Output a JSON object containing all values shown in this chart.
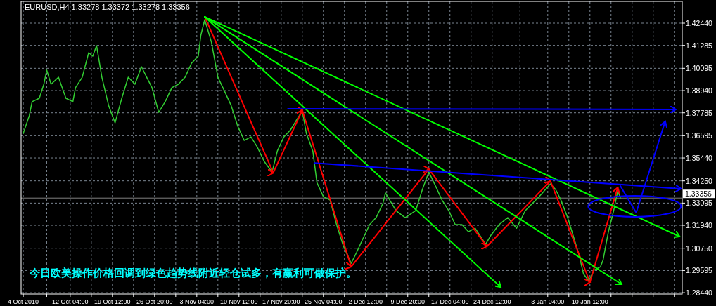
{
  "chart_data": {
    "type": "line",
    "title": "EURUSD,H4  1.33278 1.33372 1.33278 1.33356",
    "annotations": [
      "今日欧美操作价格回调到绿色趋势线附近轻仓试多，有赢利可做保护。"
    ],
    "xlim": [
      "2010-10-03T15:00",
      "2011-01-26T13:00"
    ],
    "ylim": [
      1.2837,
      1.4357
    ],
    "xticks": [
      {
        "value": "2010-10-04T00:00",
        "label": "4 Oct 2010"
      },
      {
        "value": "2010-10-08T02:00",
        "label": null
      },
      {
        "value": "2010-10-12T04:00",
        "label": "12 Oct 04:00"
      },
      {
        "value": "2010-10-15T20:00",
        "label": null
      },
      {
        "value": "2010-10-19T12:00",
        "label": "19 Oct 12:00"
      },
      {
        "value": "2010-10-23T04:00",
        "label": null
      },
      {
        "value": "2010-10-26T20:00",
        "label": "26 Oct 20:00"
      },
      {
        "value": "2010-10-30T12:00",
        "label": null
      },
      {
        "value": "2010-11-03T04:00",
        "label": "3 Nov 04:00"
      },
      {
        "value": "2010-11-06T20:00",
        "label": null
      },
      {
        "value": "2010-11-10T12:00",
        "label": "10 Nov 12:00"
      },
      {
        "value": "2010-11-14T04:00",
        "label": null
      },
      {
        "value": "2010-11-17T20:00",
        "label": "17 Nov 20:00"
      },
      {
        "value": "2010-11-21T12:00",
        "label": null
      },
      {
        "value": "2010-11-25T04:00",
        "label": "25 Nov 04:00"
      },
      {
        "value": "2010-11-28T20:00",
        "label": null
      },
      {
        "value": "2010-12-02T12:00",
        "label": "2 Dec 12:00"
      },
      {
        "value": "2010-12-06T04:00",
        "label": null
      },
      {
        "value": "2010-12-09T20:00",
        "label": "9 Dec 20:00"
      },
      {
        "value": "2010-12-13T12:00",
        "label": null
      },
      {
        "value": "2010-12-17T04:00",
        "label": "17 Dec 04:00"
      },
      {
        "value": "2010-12-20T20:00",
        "label": null
      },
      {
        "value": "2010-12-24T12:00",
        "label": "24 Dec 12:00"
      },
      {
        "value": "2010-12-29T08:00",
        "label": null
      },
      {
        "value": "2011-01-03T04:00",
        "label": "3 Jan 04:00"
      },
      {
        "value": "2011-01-06T20:00",
        "label": null
      },
      {
        "value": "2011-01-10T12:00",
        "label": "10 Jan 12:00"
      },
      {
        "value": "2011-01-14T04:00",
        "label": null
      },
      {
        "value": "2011-01-17T20:00",
        "label": null
      },
      {
        "value": "2011-01-21T12:00",
        "label": null
      },
      {
        "value": "2011-01-25T04:00",
        "label": null
      }
    ],
    "yticks": [
      {
        "value": 1.4244,
        "label": "1.42440"
      },
      {
        "value": 1.41285,
        "label": "1.41285"
      },
      {
        "value": 1.40095,
        "label": "1.40095"
      },
      {
        "value": 1.3894,
        "label": "1.38940"
      },
      {
        "value": 1.37785,
        "label": "1.37785"
      },
      {
        "value": 1.36595,
        "label": "1.36595"
      },
      {
        "value": 1.3544,
        "label": "1.35440"
      },
      {
        "value": 1.3425,
        "label": "1.34250"
      },
      {
        "value": 1.33095,
        "label": "1.33095"
      },
      {
        "value": 1.3194,
        "label": "1.31940"
      },
      {
        "value": 1.3075,
        "label": "1.30750"
      },
      {
        "value": 1.29595,
        "label": "1.29595"
      },
      {
        "value": 1.2844,
        "label": "1.28440"
      }
    ],
    "grid": true,
    "ref_lines": [
      {
        "axis": "y",
        "value": 1.33356,
        "label": "1.33356",
        "color": "#808080"
      }
    ],
    "series": [
      {
        "type": "line",
        "color": "#32cd32",
        "x": [
          "2010-10-04T00:00",
          "2010-10-05T01:00",
          "2010-10-05T13:00",
          "2010-10-06T19:00",
          "2010-10-07T14:00",
          "2010-10-08T02:00",
          "2010-10-08T20:00",
          "2010-10-10T03:00",
          "2010-10-11T10:00",
          "2010-10-12T15:00",
          "2010-10-13T02:00",
          "2010-10-14T06:00",
          "2010-10-15T09:00",
          "2010-10-16T02:00",
          "2010-10-16T18:00",
          "2010-10-17T16:00",
          "2010-10-18T20:00",
          "2010-10-19T23:00",
          "2010-10-21T03:00",
          "2010-10-22T06:00",
          "2010-10-23T10:00",
          "2010-10-24T13:00",
          "2010-10-25T11:00",
          "2010-10-26T09:00",
          "2010-10-27T13:00",
          "2010-10-28T16:00",
          "2010-10-29T20:00",
          "2010-10-30T23:00",
          "2010-11-01T03:00",
          "2010-11-02T06:00",
          "2010-11-03T10:00",
          "2010-11-03T21:00",
          "2010-11-04T13:00",
          "2010-11-05T17:00",
          "2010-11-06T20:00",
          "2010-11-08T00:00",
          "2010-11-09T03:00",
          "2010-11-10T07:00",
          "2010-11-11T10:00",
          "2010-11-12T14:00",
          "2010-11-13T17:00",
          "2010-11-14T21:00",
          "2010-11-16T06:00",
          "2010-11-17T04:00",
          "2010-11-18T07:00",
          "2010-11-19T11:00",
          "2010-11-20T14:00",
          "2010-11-21T12:00",
          "2010-11-22T05:00",
          "2010-11-23T08:00",
          "2010-11-24T01:00",
          "2010-11-25T04:00",
          "2010-11-26T08:00",
          "2010-11-27T11:00",
          "2010-11-28T15:00",
          "2010-11-30T00:00",
          "2010-11-30T22:00",
          "2010-12-02T01:00",
          "2010-12-03T05:00",
          "2010-12-04T08:00",
          "2010-12-05T12:00",
          "2010-12-05T23:00",
          "2010-12-07T19:00",
          "2010-12-09T09:00",
          "2010-12-11T05:00",
          "2010-12-12T09:00",
          "2010-12-13T12:00",
          "2010-12-14T16:00",
          "2010-12-15T19:00",
          "2010-12-16T23:00",
          "2010-12-18T02:00",
          "2010-12-19T06:00",
          "2010-12-20T09:00",
          "2010-12-21T13:00",
          "2010-12-23T09:00",
          "2010-12-24T07:00",
          "2010-12-25T17:00",
          "2010-12-27T05:00",
          "2010-12-28T18:00",
          "2010-12-30T06:00",
          "2011-01-01T16:00",
          "2011-01-03T15:00",
          "2011-01-04T13:00",
          "2011-01-05T11:00",
          "2011-01-06T15:00",
          "2011-01-07T18:00",
          "2011-01-08T16:00",
          "2011-01-09T09:00",
          "2011-01-10T07:00",
          "2011-01-11T05:00",
          "2011-01-12T08:00",
          "2011-01-12T19:00",
          "2011-01-13T17:00",
          "2011-01-14T15:00",
          "2011-01-15T08:00",
          "2011-01-15T19:00"
        ],
        "values": [
          1.3672,
          1.3763,
          1.3836,
          1.3854,
          1.3927,
          1.4,
          1.3927,
          1.3963,
          1.3854,
          1.3836,
          1.3909,
          1.3963,
          1.4091,
          1.4073,
          1.4127,
          1.3963,
          1.3817,
          1.3726,
          1.3854,
          1.3963,
          1.3927,
          1.4018,
          1.3963,
          1.3909,
          1.3781,
          1.3836,
          1.3909,
          1.3927,
          1.3963,
          1.4036,
          1.4073,
          1.4182,
          1.4262,
          1.4145,
          1.3963,
          1.389,
          1.3817,
          1.3708,
          1.3635,
          1.3653,
          1.3599,
          1.3526,
          1.3471,
          1.358,
          1.3653,
          1.369,
          1.3745,
          1.3788,
          1.3672,
          1.358,
          1.3416,
          1.3343,
          1.3325,
          1.3198,
          1.3088,
          1.2997,
          1.3052,
          1.3125,
          1.3198,
          1.3234,
          1.3307,
          1.3362,
          1.327,
          1.3234,
          1.327,
          1.338,
          1.3471,
          1.3398,
          1.3325,
          1.327,
          1.3198,
          1.3198,
          1.3161,
          1.3179,
          1.3096,
          1.3143,
          1.3198,
          1.3234,
          1.3179,
          1.327,
          1.3343,
          1.3409,
          1.338,
          1.3325,
          1.3234,
          1.3125,
          1.3033,
          1.2942,
          1.2906,
          1.2961,
          1.2979,
          1.3015,
          1.3161,
          1.327,
          1.3373,
          1.3336
        ]
      },
      {
        "type": "line",
        "color": "#ff0000",
        "x": [
          "2010-11-04T13:00",
          "2010-11-16T11:00",
          "2010-11-21T12:00",
          "2010-11-30T00:00",
          "2010-12-13T12:00",
          "2010-12-23T14:00",
          "2011-01-03T15:00",
          "2011-01-10T12:00",
          "2011-01-15T08:00"
        ],
        "values": [
          1.4277,
          1.3467,
          1.3792,
          1.2979,
          1.3486,
          1.3085,
          1.3424,
          1.2899,
          1.3391
        ]
      },
      {
        "type": "line",
        "color": "#00ff00",
        "x": [
          "2010-11-04T13:00",
          "2010-12-26T00:00"
        ],
        "values": [
          1.4277,
          1.2873
        ]
      },
      {
        "type": "line",
        "color": "#00ff00",
        "x": [
          "2010-11-04T13:00",
          "2011-01-16T00:00"
        ],
        "values": [
          1.4277,
          1.2888
        ]
      },
      {
        "type": "line",
        "color": "#00ff00",
        "x": [
          "2010-11-04T13:00",
          "2011-01-26T02:00"
        ],
        "values": [
          1.4277,
          1.3136
        ]
      },
      {
        "type": "line",
        "color": "#0000ff",
        "x": [
          "2010-11-19T00:00",
          "2011-01-25T10:00"
        ],
        "values": [
          1.3799,
          1.3796
        ]
      },
      {
        "type": "line",
        "color": "#0000ff",
        "x": [
          "2010-11-23T14:00",
          "2011-01-26T08:00"
        ],
        "values": [
          1.3518,
          1.3384
        ]
      },
      {
        "type": "line",
        "color": "#0000ff",
        "x": [
          "2011-01-15T19:00",
          "2011-01-18T13:00",
          "2011-01-23T14:00"
        ],
        "values": [
          1.3398,
          1.326,
          1.3734
        ]
      }
    ]
  }
}
